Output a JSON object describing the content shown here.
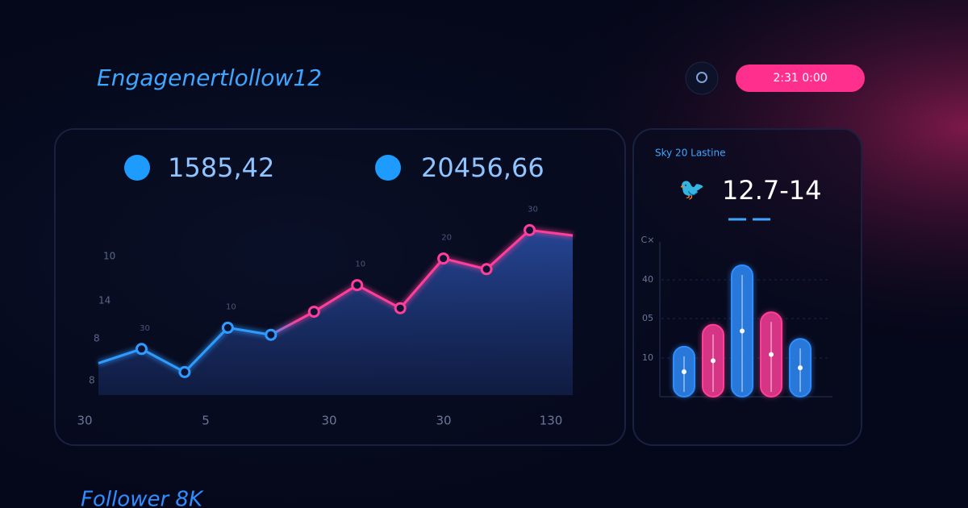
{
  "header": {
    "title": "Engagenertlollow12",
    "badge": "2:31 0:00"
  },
  "stats": [
    "1585,42",
    "20456,66"
  ],
  "line_panel": {
    "x_labels": [
      "30",
      "5",
      "30",
      "30",
      "130"
    ],
    "y_labels": [
      "10",
      "14",
      "8",
      "8"
    ],
    "values": [
      18,
      26,
      13,
      38,
      34,
      47,
      62,
      49,
      77,
      71,
      93,
      90
    ],
    "point_labels": [
      null,
      "30",
      null,
      "10",
      null,
      null,
      "10",
      null,
      "20",
      null,
      "30",
      null
    ],
    "color_start": "#2f9bff",
    "color_end": "#ff3e9a"
  },
  "side_panel": {
    "subtitle": "Sky 20 Lastine",
    "value": "12.7-14",
    "y_labels": [
      "C×",
      "40",
      "05",
      "10"
    ],
    "values": [
      32,
      46,
      84,
      54,
      37
    ],
    "colors": [
      "#2f8dff",
      "#ff3e9a",
      "#2f8dff",
      "#ff3e9a",
      "#2f8dff"
    ]
  },
  "footer": {
    "text": "Follower 8K"
  }
}
